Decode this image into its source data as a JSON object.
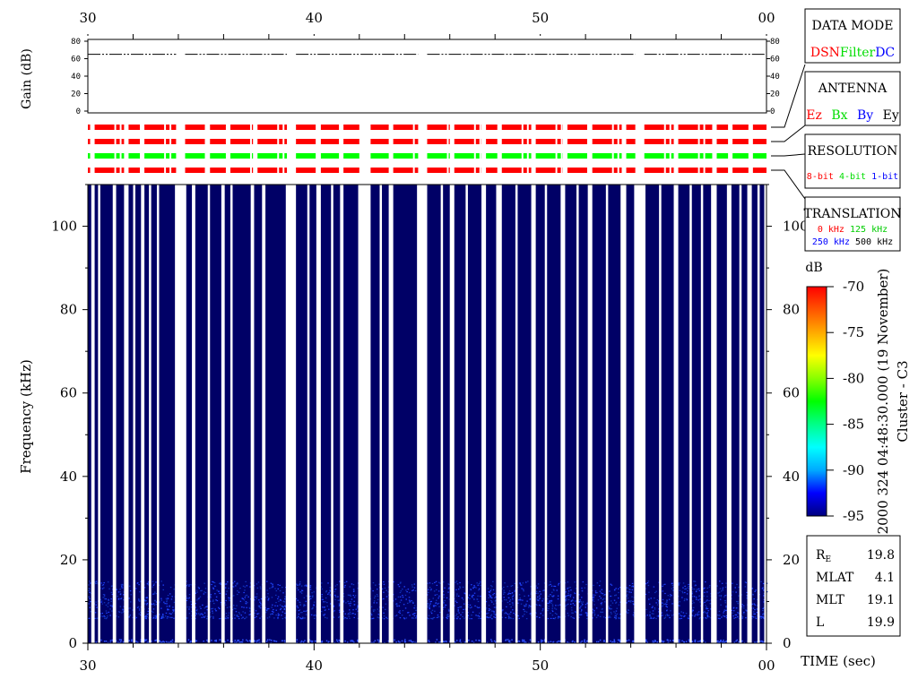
{
  "chart_data": [
    {
      "panel": "gain",
      "type": "line",
      "ylabel": "Gain (dB)",
      "ylim": [
        0,
        80
      ],
      "yticks": [
        "0",
        "20",
        "40",
        "60",
        "80"
      ],
      "xlim": [
        30,
        60
      ],
      "xticks": [
        "30",
        "40",
        "50",
        "00"
      ],
      "series": [
        {
          "values": [
            65,
            65
          ],
          "segments": [
            [
              30,
              33.9
            ],
            [
              34.3,
              38.8
            ],
            [
              39.2,
              44.6
            ],
            [
              45.0,
              54.2
            ],
            [
              54.6,
              60.0
            ]
          ]
        }
      ]
    },
    {
      "panel": "mode-bars",
      "type": "bar",
      "rows": [
        {
          "name": "data-mode",
          "color": "#ff0000"
        },
        {
          "name": "antenna",
          "color": "#ff0000"
        },
        {
          "name": "resolution",
          "color": "#00ff00"
        },
        {
          "name": "translation",
          "color": "#ff0000"
        }
      ],
      "data_gaps": [
        [
          30.1,
          30.3
        ],
        [
          31.6,
          31.8
        ],
        [
          32.3,
          32.5
        ],
        [
          33.9,
          34.3
        ],
        [
          35.2,
          35.4
        ],
        [
          36.1,
          36.3
        ],
        [
          37.3,
          37.5
        ],
        [
          38.8,
          39.2
        ],
        [
          40.1,
          40.3
        ],
        [
          41.1,
          41.3
        ],
        [
          42.0,
          42.5
        ],
        [
          43.3,
          43.5
        ],
        [
          44.6,
          45.0
        ],
        [
          46.0,
          46.2
        ],
        [
          47.4,
          47.6
        ],
        [
          48.1,
          48.3
        ],
        [
          49.6,
          49.8
        ],
        [
          51.0,
          51.2
        ],
        [
          52.1,
          52.3
        ],
        [
          53.6,
          53.8
        ],
        [
          54.2,
          54.6
        ],
        [
          55.9,
          56.1
        ],
        [
          57.6,
          57.8
        ],
        [
          58.3,
          58.5
        ],
        [
          59.2,
          59.4
        ]
      ]
    },
    {
      "panel": "spectrogram",
      "type": "heatmap",
      "ylabel": "Frequency (kHz)",
      "xlabel": "TIME (sec)",
      "ylim": [
        0,
        110
      ],
      "yticks": [
        "0",
        "20",
        "40",
        "60",
        "80",
        "100"
      ],
      "xlim": [
        30,
        60
      ],
      "xticks": [
        "30",
        "40",
        "50",
        "00"
      ],
      "background_db": -95,
      "emission_band_khz": [
        6,
        15
      ],
      "emission_db": -91,
      "white_gap_columns": [
        [
          30.15,
          30.3
        ],
        [
          30.45,
          30.55
        ],
        [
          31.1,
          31.25
        ],
        [
          31.6,
          31.8
        ],
        [
          32.0,
          32.1
        ],
        [
          32.35,
          32.5
        ],
        [
          32.7,
          32.8
        ],
        [
          33.05,
          33.15
        ],
        [
          33.85,
          34.35
        ],
        [
          34.6,
          34.75
        ],
        [
          35.3,
          35.4
        ],
        [
          35.9,
          36.05
        ],
        [
          36.3,
          36.4
        ],
        [
          37.2,
          37.35
        ],
        [
          37.7,
          37.85
        ],
        [
          38.75,
          39.2
        ],
        [
          39.7,
          39.8
        ],
        [
          40.1,
          40.3
        ],
        [
          40.75,
          40.85
        ],
        [
          41.15,
          41.3
        ],
        [
          41.95,
          42.5
        ],
        [
          42.9,
          43.0
        ],
        [
          43.3,
          43.5
        ],
        [
          44.55,
          45.0
        ],
        [
          45.6,
          45.7
        ],
        [
          46.0,
          46.2
        ],
        [
          46.7,
          46.8
        ],
        [
          47.4,
          47.6
        ],
        [
          48.05,
          48.3
        ],
        [
          48.9,
          49.0
        ],
        [
          49.6,
          49.8
        ],
        [
          50.2,
          50.3
        ],
        [
          50.9,
          51.1
        ],
        [
          51.6,
          51.7
        ],
        [
          52.1,
          52.3
        ],
        [
          52.9,
          53.0
        ],
        [
          53.55,
          53.8
        ],
        [
          54.15,
          54.65
        ],
        [
          55.25,
          55.35
        ],
        [
          55.9,
          56.1
        ],
        [
          56.6,
          56.7
        ],
        [
          57.1,
          57.2
        ],
        [
          57.55,
          57.8
        ],
        [
          58.25,
          58.45
        ],
        [
          58.8,
          58.9
        ],
        [
          59.15,
          59.35
        ],
        [
          59.6,
          59.7
        ],
        [
          59.9,
          60.0
        ]
      ]
    }
  ],
  "legend": {
    "data_mode": {
      "title": "DATA MODE",
      "items": [
        {
          "label": "DSN",
          "color": "#ff0000"
        },
        {
          "label": "Filter",
          "color": "#00ff00"
        },
        {
          "label": "DC",
          "color": "#0000ff"
        }
      ]
    },
    "antenna": {
      "title": "ANTENNA",
      "items": [
        {
          "label": "Ez",
          "color": "#ff0000"
        },
        {
          "label": "Bx",
          "color": "#00ff00"
        },
        {
          "label": "By",
          "color": "#0000ff"
        },
        {
          "label": "Ey",
          "color": "#000000"
        }
      ]
    },
    "resolution": {
      "title": "RESOLUTION",
      "items": [
        {
          "label": "8-bit",
          "color": "#ff0000"
        },
        {
          "label": "4-bit",
          "color": "#00ff00"
        },
        {
          "label": "1-bit",
          "color": "#0000ff"
        }
      ]
    },
    "translation": {
      "title": "TRANSLATION",
      "items": [
        {
          "label": "0 kHz",
          "color": "#ff0000"
        },
        {
          "label": "125 kHz",
          "color": "#00ff00"
        },
        {
          "label": "250 kHz",
          "color": "#0000ff"
        },
        {
          "label": "500 kHz",
          "color": "#000000"
        }
      ]
    }
  },
  "colorbar": {
    "unit": "dB",
    "range": [
      -95,
      -70
    ],
    "ticks": [
      "-70",
      "-75",
      "-80",
      "-85",
      "-90",
      "-95"
    ],
    "colors": [
      "#000080",
      "#0000ff",
      "#00aaff",
      "#00ffff",
      "#00ff88",
      "#00ff00",
      "#88ff00",
      "#ffff00",
      "#ffaa00",
      "#ff5500",
      "#ff0000"
    ]
  },
  "side_label": {
    "line1": "2000 324 04:48:30.000 (19 November)",
    "line2": "Cluster - C3"
  },
  "orbit": [
    {
      "label": "R",
      "sub": "E",
      "value": "19.8"
    },
    {
      "label": "MLAT",
      "value": "4.1"
    },
    {
      "label": "MLT",
      "value": "19.1"
    },
    {
      "label": "L",
      "value": "19.9"
    }
  ],
  "colors": {
    "background": "#ffffff",
    "spectrogram_bg": "#000066",
    "noise": "#1133dd"
  }
}
